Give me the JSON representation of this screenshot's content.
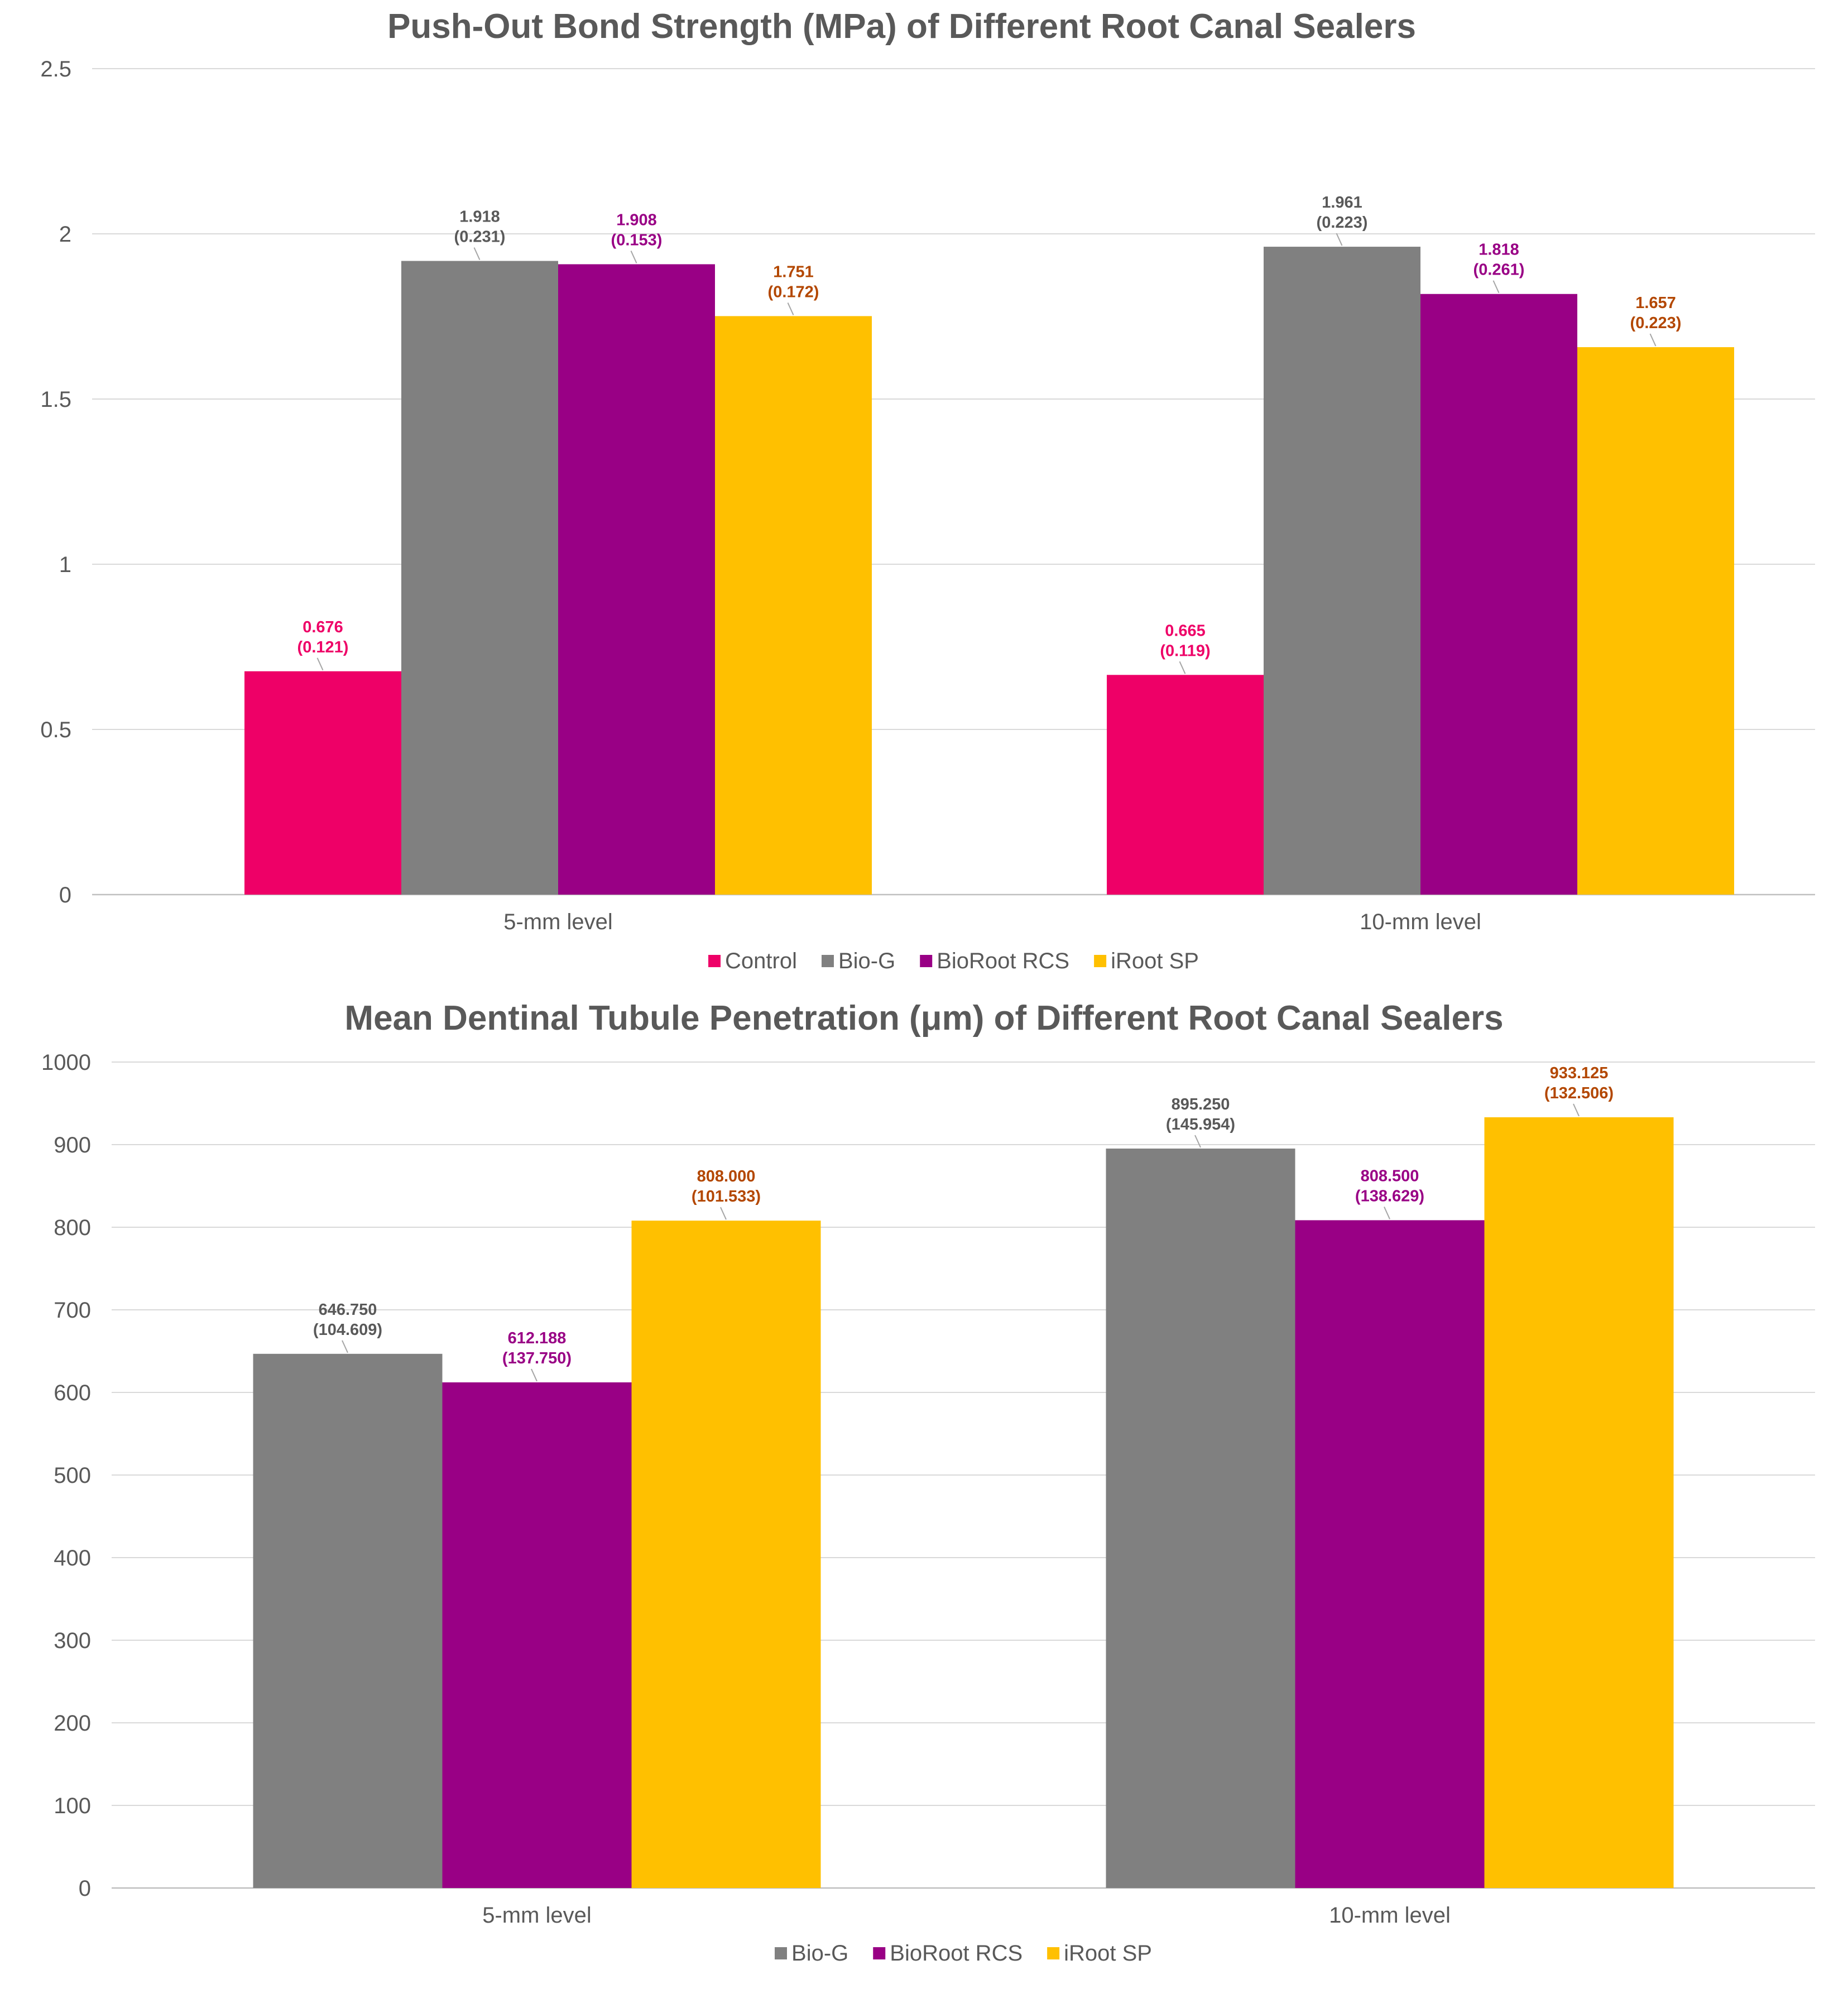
{
  "colors": {
    "Control": "#EE0067",
    "Bio-G": "#808080",
    "BioRoot RCS": "#990085",
    "iRoot SP": "#FFC000"
  },
  "label_colors": {
    "Control": "#EE0067",
    "Bio-G": "#595959",
    "BioRoot RCS": "#990085",
    "iRoot SP": "#B34700"
  },
  "chart_data": [
    {
      "type": "bar",
      "title": "Push-Out Bond Strength (MPa) of Different Root Canal Sealers",
      "xlabel": "",
      "ylabel": "",
      "categories": [
        "5-mm level",
        "10-mm level"
      ],
      "ylim": [
        0,
        2.5
      ],
      "yticks": [
        0,
        0.5,
        1,
        1.5,
        2,
        2.5
      ],
      "ytick_labels": [
        "0",
        "0.5",
        "1",
        "1.5",
        "2",
        "2.5"
      ],
      "grid": true,
      "legend": "bottom-center",
      "series": [
        {
          "name": "Control",
          "values": [
            0.676,
            0.665
          ],
          "labels": [
            "0.676",
            "0.665"
          ],
          "sd": [
            "(0.121)",
            "(0.119)"
          ]
        },
        {
          "name": "Bio-G",
          "values": [
            1.918,
            1.961
          ],
          "labels": [
            "1.918",
            "1.961"
          ],
          "sd": [
            "(0.231)",
            "(0.223)"
          ]
        },
        {
          "name": "BioRoot RCS",
          "values": [
            1.908,
            1.818
          ],
          "labels": [
            "1.908",
            "1.818"
          ],
          "sd": [
            "(0.153)",
            "(0.261)"
          ]
        },
        {
          "name": "iRoot SP",
          "values": [
            1.751,
            1.657
          ],
          "labels": [
            "1.751",
            "1.657"
          ],
          "sd": [
            "(0.172)",
            "(0.223)"
          ]
        }
      ]
    },
    {
      "type": "bar",
      "title": "Mean Dentinal Tubule Penetration (μm) of Different Root Canal Sealers",
      "xlabel": "",
      "ylabel": "",
      "categories": [
        "5-mm level",
        "10-mm level"
      ],
      "ylim": [
        0,
        1000
      ],
      "yticks": [
        0,
        100,
        200,
        300,
        400,
        500,
        600,
        700,
        800,
        900,
        1000
      ],
      "ytick_labels": [
        "0",
        "100",
        "200",
        "300",
        "400",
        "500",
        "600",
        "700",
        "800",
        "900",
        "1000"
      ],
      "grid": true,
      "legend": "bottom-center",
      "series": [
        {
          "name": "Bio-G",
          "values": [
            646.75,
            895.25
          ],
          "labels": [
            "646.750",
            "895.250"
          ],
          "sd": [
            "(104.609)",
            "(145.954)"
          ]
        },
        {
          "name": "BioRoot RCS",
          "values": [
            612.188,
            808.5
          ],
          "labels": [
            "612.188",
            "808.500"
          ],
          "sd": [
            "(137.750)",
            "(138.629)"
          ]
        },
        {
          "name": "iRoot SP",
          "values": [
            808.0,
            933.125
          ],
          "labels": [
            "808.000",
            "933.125"
          ],
          "sd": [
            "(101.533)",
            "(132.506)"
          ]
        }
      ]
    }
  ]
}
